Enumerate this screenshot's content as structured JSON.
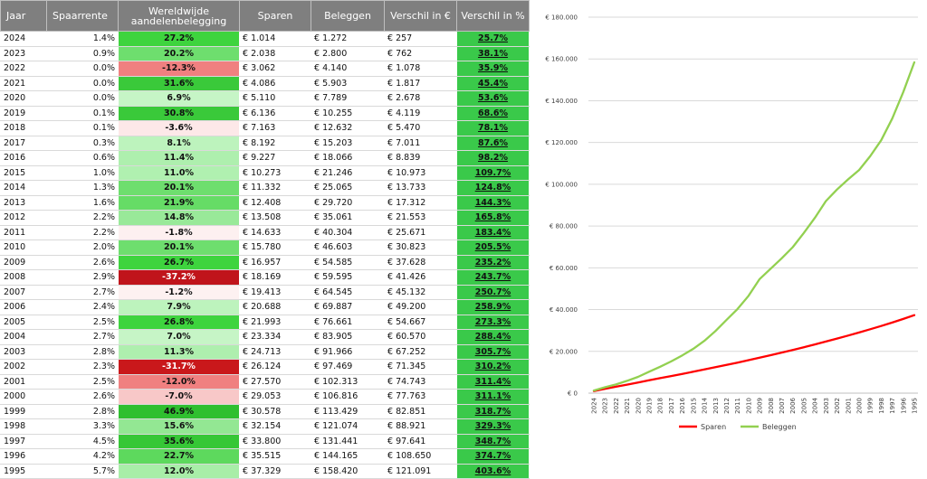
{
  "table": {
    "headers": {
      "jaar": "Jaar",
      "spaarrente": "Spaarrente",
      "wereld_line1": "Wereldwijde",
      "wereld_line2": "aandelenbelegging",
      "sparen": "Sparen",
      "beleggen": "Beleggen",
      "verschil_eur": "Verschil in €",
      "verschil_pct": "Verschil in %"
    },
    "rows": [
      {
        "jaar": "2024",
        "rente": "1.4%",
        "wereld": "27.2%",
        "sparen": "€ 1.014",
        "beleggen": "€ 1.272",
        "vers_eur": "€ 257",
        "vers_pct": "25.7%",
        "wereld_color": "#3ed43e"
      },
      {
        "jaar": "2023",
        "rente": "0.9%",
        "wereld": "20.2%",
        "sparen": "€ 2.038",
        "beleggen": "€ 2.800",
        "vers_eur": "€ 762",
        "vers_pct": "38.1%",
        "wereld_color": "#6ede6e"
      },
      {
        "jaar": "2022",
        "rente": "0.0%",
        "wereld": "-12.3%",
        "sparen": "€ 3.062",
        "beleggen": "€ 4.140",
        "vers_eur": "€ 1.078",
        "vers_pct": "35.9%",
        "wereld_color": "#f08080"
      },
      {
        "jaar": "2021",
        "rente": "0.0%",
        "wereld": "31.6%",
        "sparen": "€ 4.086",
        "beleggen": "€ 5.903",
        "vers_eur": "€ 1.817",
        "vers_pct": "45.4%",
        "wereld_color": "#3ac93a"
      },
      {
        "jaar": "2020",
        "rente": "0.0%",
        "wereld": "6.9%",
        "sparen": "€ 5.110",
        "beleggen": "€ 7.789",
        "vers_eur": "€ 2.678",
        "vers_pct": "53.6%",
        "wereld_color": "#c6f5c6"
      },
      {
        "jaar": "2019",
        "rente": "0.1%",
        "wereld": "30.8%",
        "sparen": "€ 6.136",
        "beleggen": "€ 10.255",
        "vers_eur": "€ 4.119",
        "vers_pct": "68.6%",
        "wereld_color": "#3ac93a"
      },
      {
        "jaar": "2018",
        "rente": "0.1%",
        "wereld": "-3.6%",
        "sparen": "€ 7.163",
        "beleggen": "€ 12.632",
        "vers_eur": "€ 5.470",
        "vers_pct": "78.1%",
        "wereld_color": "#fde8e8"
      },
      {
        "jaar": "2017",
        "rente": "0.3%",
        "wereld": "8.1%",
        "sparen": "€ 8.192",
        "beleggen": "€ 15.203",
        "vers_eur": "€ 7.011",
        "vers_pct": "87.6%",
        "wereld_color": "#bdf3bd"
      },
      {
        "jaar": "2016",
        "rente": "0.6%",
        "wereld": "11.4%",
        "sparen": "€ 9.227",
        "beleggen": "€ 18.066",
        "vers_eur": "€ 8.839",
        "vers_pct": "98.2%",
        "wereld_color": "#aeefae"
      },
      {
        "jaar": "2015",
        "rente": "1.0%",
        "wereld": "11.0%",
        "sparen": "€ 10.273",
        "beleggen": "€ 21.246",
        "vers_eur": "€ 10.973",
        "vers_pct": "109.7%",
        "wereld_color": "#b0f0b0"
      },
      {
        "jaar": "2014",
        "rente": "1.3%",
        "wereld": "20.1%",
        "sparen": "€ 11.332",
        "beleggen": "€ 25.065",
        "vers_eur": "€ 13.733",
        "vers_pct": "124.8%",
        "wereld_color": "#6ede6e"
      },
      {
        "jaar": "2013",
        "rente": "1.6%",
        "wereld": "21.9%",
        "sparen": "€ 12.408",
        "beleggen": "€ 29.720",
        "vers_eur": "€ 17.312",
        "vers_pct": "144.3%",
        "wereld_color": "#66dc66"
      },
      {
        "jaar": "2012",
        "rente": "2.2%",
        "wereld": "14.8%",
        "sparen": "€ 13.508",
        "beleggen": "€ 35.061",
        "vers_eur": "€ 21.553",
        "vers_pct": "165.8%",
        "wereld_color": "#99e999"
      },
      {
        "jaar": "2011",
        "rente": "2.2%",
        "wereld": "-1.8%",
        "sparen": "€ 14.633",
        "beleggen": "€ 40.304",
        "vers_eur": "€ 25.671",
        "vers_pct": "183.4%",
        "wereld_color": "#fdf0f0"
      },
      {
        "jaar": "2010",
        "rente": "2.0%",
        "wereld": "20.1%",
        "sparen": "€ 15.780",
        "beleggen": "€ 46.603",
        "vers_eur": "€ 30.823",
        "vers_pct": "205.5%",
        "wereld_color": "#6ede6e"
      },
      {
        "jaar": "2009",
        "rente": "2.6%",
        "wereld": "26.7%",
        "sparen": "€ 16.957",
        "beleggen": "€ 54.585",
        "vers_eur": "€ 37.628",
        "vers_pct": "235.2%",
        "wereld_color": "#3ed43e"
      },
      {
        "jaar": "2008",
        "rente": "2.9%",
        "wereld": "-37.2%",
        "sparen": "€ 18.169",
        "beleggen": "€ 59.595",
        "vers_eur": "€ 41.426",
        "vers_pct": "243.7%",
        "wereld_color": "#c0141b"
      },
      {
        "jaar": "2007",
        "rente": "2.7%",
        "wereld": "-1.2%",
        "sparen": "€ 19.413",
        "beleggen": "€ 64.545",
        "vers_eur": "€ 45.132",
        "vers_pct": "250.7%",
        "wereld_color": "#fdf1f1"
      },
      {
        "jaar": "2006",
        "rente": "2.4%",
        "wereld": "7.9%",
        "sparen": "€ 20.688",
        "beleggen": "€ 69.887",
        "vers_eur": "€ 49.200",
        "vers_pct": "258.9%",
        "wereld_color": "#bdf3bd"
      },
      {
        "jaar": "2005",
        "rente": "2.5%",
        "wereld": "26.8%",
        "sparen": "€ 21.993",
        "beleggen": "€ 76.661",
        "vers_eur": "€ 54.667",
        "vers_pct": "273.3%",
        "wereld_color": "#3ed43e"
      },
      {
        "jaar": "2004",
        "rente": "2.7%",
        "wereld": "7.0%",
        "sparen": "€ 23.334",
        "beleggen": "€ 83.905",
        "vers_eur": "€ 60.570",
        "vers_pct": "288.4%",
        "wereld_color": "#c6f5c6"
      },
      {
        "jaar": "2003",
        "rente": "2.8%",
        "wereld": "11.3%",
        "sparen": "€ 24.713",
        "beleggen": "€ 91.966",
        "vers_eur": "€ 67.252",
        "vers_pct": "305.7%",
        "wereld_color": "#aeefae"
      },
      {
        "jaar": "2002",
        "rente": "2.3%",
        "wereld": "-31.7%",
        "sparen": "€ 26.124",
        "beleggen": "€ 97.469",
        "vers_eur": "€ 71.345",
        "vers_pct": "310.2%",
        "wereld_color": "#c9181b"
      },
      {
        "jaar": "2001",
        "rente": "2.5%",
        "wereld": "-12.0%",
        "sparen": "€ 27.570",
        "beleggen": "€ 102.313",
        "vers_eur": "€ 74.743",
        "vers_pct": "311.4%",
        "wereld_color": "#f08080"
      },
      {
        "jaar": "2000",
        "rente": "2.6%",
        "wereld": "-7.0%",
        "sparen": "€ 29.053",
        "beleggen": "€ 106.816",
        "vers_eur": "€ 77.763",
        "vers_pct": "311.1%",
        "wereld_color": "#f8c8c8"
      },
      {
        "jaar": "1999",
        "rente": "2.8%",
        "wereld": "46.9%",
        "sparen": "€ 30.578",
        "beleggen": "€ 113.429",
        "vers_eur": "€ 82.851",
        "vers_pct": "318.7%",
        "wereld_color": "#2fbf2f"
      },
      {
        "jaar": "1998",
        "rente": "3.3%",
        "wereld": "15.6%",
        "sparen": "€ 32.154",
        "beleggen": "€ 121.074",
        "vers_eur": "€ 88.921",
        "vers_pct": "329.3%",
        "wereld_color": "#93e793"
      },
      {
        "jaar": "1997",
        "rente": "4.5%",
        "wereld": "35.6%",
        "sparen": "€ 33.800",
        "beleggen": "€ 131.441",
        "vers_eur": "€ 97.641",
        "vers_pct": "348.7%",
        "wereld_color": "#36c736"
      },
      {
        "jaar": "1996",
        "rente": "4.2%",
        "wereld": "22.7%",
        "sparen": "€ 35.515",
        "beleggen": "€ 144.165",
        "vers_eur": "€ 108.650",
        "vers_pct": "374.7%",
        "wereld_color": "#5dd95d"
      },
      {
        "jaar": "1995",
        "rente": "5.7%",
        "wereld": "12.0%",
        "sparen": "€ 37.329",
        "beleggen": "€ 158.420",
        "vers_eur": "€ 121.091",
        "vers_pct": "403.6%",
        "wereld_color": "#a8eea8"
      }
    ]
  },
  "chart_data": {
    "type": "line",
    "title": "",
    "xlabel": "",
    "ylabel": "",
    "categories": [
      "2024",
      "2023",
      "2022",
      "2021",
      "2020",
      "2019",
      "2018",
      "2017",
      "2016",
      "2015",
      "2014",
      "2013",
      "2012",
      "2011",
      "2010",
      "2009",
      "2008",
      "2007",
      "2006",
      "2005",
      "2004",
      "2003",
      "2002",
      "2001",
      "2000",
      "1999",
      "1998",
      "1997",
      "1996",
      "1995"
    ],
    "series": [
      {
        "name": "Sparen",
        "color": "#ff0000",
        "values": [
          1014,
          2038,
          3062,
          4086,
          5110,
          6136,
          7163,
          8192,
          9227,
          10273,
          11332,
          12408,
          13508,
          14633,
          15780,
          16957,
          18169,
          19413,
          20688,
          21993,
          23334,
          24713,
          26124,
          27570,
          29053,
          30578,
          32154,
          33800,
          35515,
          37329
        ]
      },
      {
        "name": "Beleggen",
        "color": "#92d050",
        "values": [
          1272,
          2800,
          4140,
          5903,
          7789,
          10255,
          12632,
          15203,
          18066,
          21246,
          25065,
          29720,
          35061,
          40304,
          46603,
          54585,
          59595,
          64545,
          69887,
          76661,
          83905,
          91966,
          97469,
          102313,
          106816,
          113429,
          121074,
          131441,
          144165,
          158420
        ]
      }
    ],
    "ylim": [
      0,
      180000
    ],
    "yticks": [
      0,
      20000,
      40000,
      60000,
      80000,
      100000,
      120000,
      140000,
      160000,
      180000
    ],
    "ytick_labels": [
      "€ 0",
      "€ 20.000",
      "€ 40.000",
      "€ 60.000",
      "€ 80.000",
      "€ 100.000",
      "€ 120.000",
      "€ 140.000",
      "€ 160.000",
      "€ 180.000"
    ],
    "grid": true,
    "legend_position": "bottom"
  }
}
